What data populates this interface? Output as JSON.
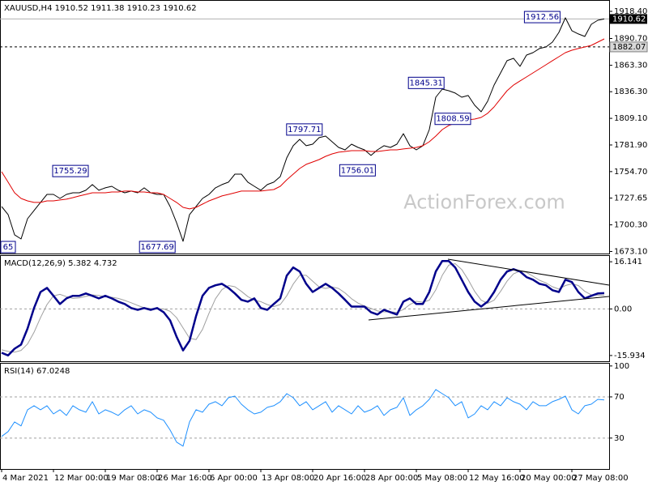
{
  "chart_data": [
    {
      "type": "line",
      "title": "XAUUSD,H4  1910.52 1911.38 1910.23 1910.62",
      "xlim": [
        0,
        93.5
      ],
      "ylim": [
        1671,
        1930
      ],
      "yticks": [
        {
          "value": 1918.4,
          "label": "1918.40"
        },
        {
          "value": 1890.7,
          "label": "1890.70"
        },
        {
          "value": 1863.3,
          "label": "1863.30"
        },
        {
          "value": 1836.3,
          "label": "1836.30"
        },
        {
          "value": 1809.1,
          "label": "1809.10"
        },
        {
          "value": 1781.9,
          "label": "1781.90"
        },
        {
          "value": 1754.7,
          "label": "1754.70"
        },
        {
          "value": 1727.65,
          "label": "1727.65"
        },
        {
          "value": 1700.3,
          "label": "1700.30"
        },
        {
          "value": 1673.1,
          "label": "1673.10"
        }
      ],
      "series": [
        {
          "name": "XAUUSD",
          "color": "#000000",
          "line_width": 1,
          "values": [
            1719.0,
            1710.8,
            1690.1,
            1685.9,
            1706.6,
            1714.9,
            1723.2,
            1731.4,
            1731.4,
            1727.3,
            1731.4,
            1733.1,
            1733.1,
            1735.6,
            1741.4,
            1735.6,
            1738.1,
            1739.7,
            1735.6,
            1733.1,
            1734.8,
            1733.1,
            1738.1,
            1733.1,
            1731.4,
            1731.4,
            1719.0,
            1702.5,
            1683.5,
            1710.8,
            1719.0,
            1727.3,
            1731.4,
            1738.1,
            1741.4,
            1743.9,
            1752.1,
            1752.1,
            1743.9,
            1739.7,
            1735.6,
            1741.4,
            1743.9,
            1749.6,
            1768.7,
            1781.1,
            1787.7,
            1781.1,
            1782.7,
            1789.4,
            1791.0,
            1785.2,
            1779.4,
            1776.9,
            1782.7,
            1779.4,
            1776.9,
            1771.2,
            1776.9,
            1781.1,
            1779.4,
            1782.7,
            1793.5,
            1781.1,
            1776.9,
            1781.1,
            1797.6,
            1830.7,
            1839.0,
            1837.3,
            1834.9,
            1830.7,
            1832.4,
            1822.5,
            1815.8,
            1826.6,
            1843.1,
            1855.5,
            1868.0,
            1870.4,
            1862.2,
            1873.7,
            1876.2,
            1880.4,
            1882.0,
            1887.0,
            1896.9,
            1911.8,
            1898.6,
            1895.3,
            1892.8,
            1905.2,
            1909.3,
            1910.6
          ]
        },
        {
          "name": "MA",
          "color": "#e00000",
          "line_width": 1,
          "values": [
            1754.6,
            1743.9,
            1733.1,
            1727.3,
            1724.8,
            1723.2,
            1723.2,
            1724.8,
            1724.8,
            1725.7,
            1726.5,
            1728.1,
            1729.8,
            1731.4,
            1733.1,
            1733.1,
            1733.1,
            1733.9,
            1733.9,
            1734.8,
            1734.8,
            1733.9,
            1733.9,
            1733.1,
            1733.1,
            1731.4,
            1727.3,
            1723.2,
            1718.2,
            1716.6,
            1718.2,
            1721.5,
            1724.8,
            1727.3,
            1729.8,
            1731.4,
            1733.1,
            1734.8,
            1734.8,
            1734.8,
            1734.8,
            1735.6,
            1736.4,
            1739.7,
            1746.3,
            1752.1,
            1757.9,
            1762.1,
            1764.5,
            1767.0,
            1770.3,
            1772.8,
            1774.5,
            1775.3,
            1776.1,
            1776.1,
            1776.1,
            1775.3,
            1775.3,
            1776.1,
            1776.9,
            1776.9,
            1777.8,
            1778.6,
            1779.4,
            1781.1,
            1785.2,
            1791.0,
            1797.6,
            1801.8,
            1804.3,
            1805.9,
            1807.6,
            1808.4,
            1810.0,
            1814.2,
            1820.8,
            1829.1,
            1837.3,
            1843.1,
            1847.3,
            1851.4,
            1855.5,
            1859.7,
            1863.8,
            1868.0,
            1872.1,
            1876.2,
            1878.7,
            1880.4,
            1882.0,
            1883.7,
            1887.0,
            1890.3
          ]
        }
      ],
      "peak_labels": [
        {
          "x": 86.3,
          "value": 1912.56
        },
        {
          "x": 68.4,
          "value": 1845.31
        },
        {
          "x": 49.6,
          "value": 1797.71
        },
        {
          "x": 13.5,
          "value": 1755.29
        },
        {
          "x": 72.5,
          "value": 1808.59
        },
        {
          "x": 57.8,
          "value": 1756.01
        },
        {
          "x": 26.9,
          "value": 1677.69
        }
      ],
      "clipped_label": "65",
      "current_price": 1910.62,
      "hline": 1882.07,
      "watermark": "ActionForex.com"
    },
    {
      "type": "line",
      "title": "MACD(12,26,9) 5.382 4.732",
      "xlim": [
        0,
        93.5
      ],
      "ylim": [
        -17.9,
        18.4
      ],
      "yticks": [
        {
          "value": 16.141,
          "label": "16.141"
        },
        {
          "value": 0,
          "label": "0.00"
        },
        {
          "value": -15.934,
          "label": "-15.934"
        }
      ],
      "levels": [
        0
      ],
      "series": [
        {
          "name": "Signal",
          "color": "#a0a0a0",
          "line_width": 1,
          "values": [
            -14.0,
            -14.5,
            -14.8,
            -14.2,
            -12.0,
            -8.0,
            -3.0,
            1.5,
            4.5,
            5.0,
            4.2,
            3.6,
            3.8,
            4.3,
            4.8,
            4.6,
            4.2,
            4.0,
            3.6,
            2.9,
            2.1,
            1.2,
            0.4,
            0.1,
            0.0,
            0.0,
            -0.8,
            -3.0,
            -6.5,
            -10.0,
            -10.5,
            -7.0,
            -1.5,
            3.5,
            6.6,
            8.0,
            7.6,
            6.0,
            4.2,
            3.0,
            2.5,
            1.5,
            0.8,
            1.5,
            4.5,
            8.5,
            11.5,
            11.5,
            9.5,
            7.5,
            7.0,
            7.5,
            7.0,
            5.5,
            3.5,
            2.0,
            1.0,
            0.2,
            -0.7,
            -1.0,
            -1.0,
            -1.2,
            -0.2,
            1.5,
            2.6,
            2.3,
            3.0,
            6.5,
            11.5,
            15.0,
            15.5,
            13.5,
            10.0,
            6.0,
            3.0,
            1.9,
            3.0,
            6.0,
            9.5,
            12.0,
            13.0,
            12.5,
            11.2,
            9.8,
            8.9,
            7.6,
            6.8,
            8.0,
            8.6,
            8.0,
            6.0,
            4.8,
            4.7,
            4.7
          ]
        },
        {
          "name": "MACD",
          "color": "#00008b",
          "line_width": 2.5,
          "values": [
            -15.0,
            -15.9,
            -13.6,
            -12.2,
            -6.7,
            0.3,
            5.8,
            7.2,
            4.5,
            1.7,
            3.6,
            4.5,
            4.5,
            5.3,
            4.5,
            3.6,
            4.5,
            3.6,
            2.5,
            1.7,
            0.3,
            -0.3,
            0.3,
            -0.3,
            0.3,
            -1.1,
            -3.9,
            -9.5,
            -14.2,
            -10.9,
            -2.5,
            4.5,
            7.2,
            8.1,
            8.6,
            7.2,
            5.3,
            3.1,
            2.5,
            3.6,
            0.3,
            -0.3,
            1.7,
            3.6,
            11.4,
            14.2,
            12.8,
            8.6,
            5.8,
            7.2,
            8.6,
            7.2,
            5.3,
            3.1,
            0.8,
            0.8,
            0.8,
            -1.1,
            -1.9,
            -0.3,
            -1.1,
            -1.9,
            2.5,
            3.6,
            1.7,
            1.7,
            5.8,
            12.8,
            16.4,
            16.4,
            14.2,
            10.0,
            5.8,
            2.5,
            0.8,
            2.5,
            5.8,
            10.0,
            12.8,
            13.6,
            12.8,
            10.9,
            10.0,
            8.6,
            8.1,
            6.4,
            5.8,
            10.0,
            9.2,
            5.8,
            3.6,
            4.5,
            5.3,
            5.4
          ]
        }
      ]
    },
    {
      "type": "line",
      "title": "RSI(14) 67.0248",
      "xlim": [
        0,
        93.5
      ],
      "ylim": [
        0,
        103
      ],
      "yticks": [
        100,
        70,
        30
      ],
      "levels": [
        70,
        30
      ],
      "series": [
        {
          "name": "RSI",
          "color": "#1e90ff",
          "line_width": 1,
          "values": [
            31.6,
            36.3,
            45.7,
            41.8,
            57.5,
            61.4,
            57.5,
            61.4,
            53.5,
            57.5,
            52.0,
            61.4,
            57.5,
            55.1,
            65.3,
            53.5,
            57.5,
            55.1,
            52.0,
            57.5,
            61.4,
            53.5,
            57.5,
            55.1,
            49.6,
            47.3,
            37.8,
            26.1,
            22.2,
            45.7,
            57.5,
            55.1,
            62.9,
            65.3,
            61.4,
            69.2,
            70.8,
            62.9,
            57.5,
            53.5,
            55.1,
            59.8,
            61.4,
            65.3,
            73.1,
            69.2,
            61.4,
            65.3,
            57.5,
            61.4,
            65.3,
            55.1,
            61.4,
            57.5,
            53.5,
            61.4,
            55.1,
            57.5,
            61.4,
            52.0,
            57.5,
            59.8,
            69.2,
            52.0,
            57.5,
            61.4,
            67.6,
            77.1,
            73.1,
            69.2,
            61.4,
            65.3,
            49.6,
            53.5,
            61.4,
            57.5,
            65.3,
            61.4,
            69.2,
            65.3,
            62.9,
            57.5,
            65.3,
            61.4,
            61.4,
            65.3,
            67.6,
            70.8,
            57.5,
            53.5,
            61.4,
            62.9,
            67.6,
            67.0
          ]
        }
      ],
      "xticks": [
        {
          "value": 0,
          "label": "4 Mar 2021"
        },
        {
          "value": 8,
          "label": "12 Mar 00:00"
        },
        {
          "value": 16,
          "label": "19 Mar 08:00"
        },
        {
          "value": 24,
          "label": "26 Mar 16:00"
        },
        {
          "value": 32,
          "label": "6 Apr 00:00"
        },
        {
          "value": 40,
          "label": "13 Apr 08:00"
        },
        {
          "value": 48,
          "label": "20 Apr 16:00"
        },
        {
          "value": 56,
          "label": "28 Apr 00:00"
        },
        {
          "value": 64,
          "label": "5 May 08:00"
        },
        {
          "value": 72,
          "label": "12 May 16:00"
        },
        {
          "value": 80,
          "label": "20 May 00:00"
        },
        {
          "value": 88,
          "label": "27 May 08:00"
        }
      ]
    }
  ]
}
